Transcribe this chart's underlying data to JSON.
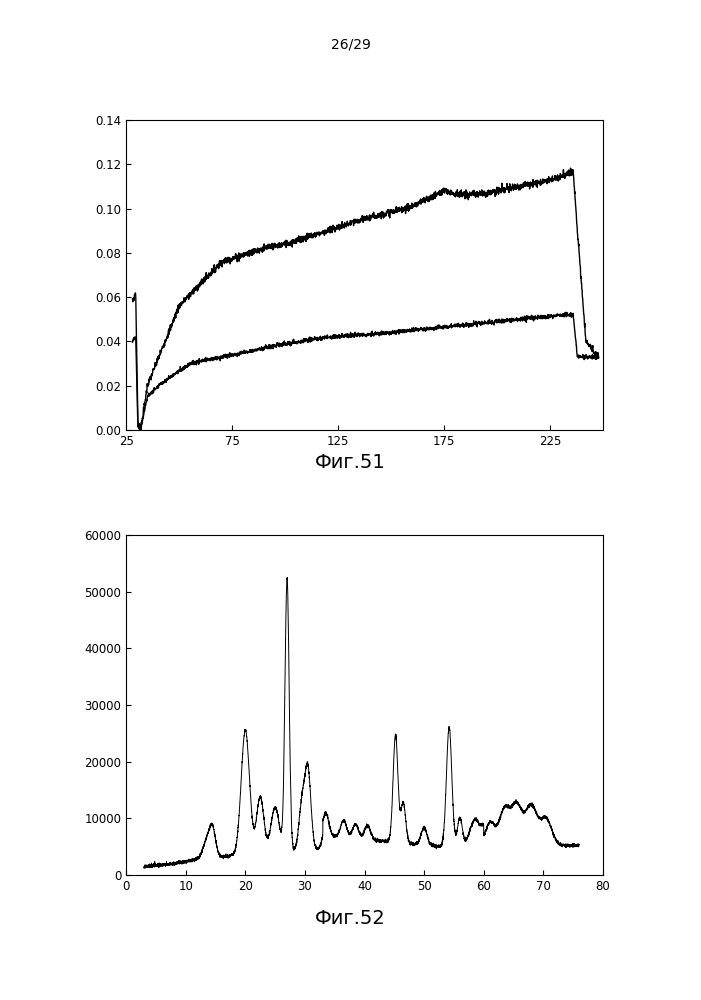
{
  "page_label": "26/29",
  "fig51_caption": "Фиг.51",
  "fig52_caption": "Фиг.52",
  "fig51": {
    "xlim": [
      25,
      250
    ],
    "ylim": [
      0,
      0.14
    ],
    "xticks": [
      25,
      75,
      125,
      175,
      225
    ],
    "yticks": [
      0,
      0.02,
      0.04,
      0.06,
      0.08,
      0.1,
      0.12,
      0.14
    ],
    "line_color": "#000000",
    "bg_color": "#ffffff",
    "border_color": "#000000"
  },
  "fig52": {
    "xlim": [
      0,
      80
    ],
    "ylim": [
      0,
      60000
    ],
    "xticks": [
      0,
      10,
      20,
      30,
      40,
      50,
      60,
      70,
      80
    ],
    "yticks": [
      0,
      10000,
      20000,
      30000,
      40000,
      50000,
      60000
    ],
    "line_color": "#000000",
    "bg_color": "#ffffff"
  }
}
